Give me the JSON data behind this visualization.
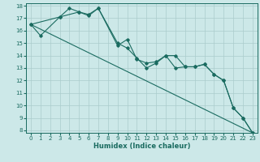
{
  "title": "",
  "xlabel": "Humidex (Indice chaleur)",
  "ylabel": "",
  "bg_color": "#cce8e8",
  "grid_color": "#aacccc",
  "line_color": "#1a6b60",
  "spine_color": "#1a6b60",
  "xlim": [
    -0.5,
    23.5
  ],
  "ylim": [
    7.8,
    18.2
  ],
  "xticks": [
    0,
    1,
    2,
    3,
    4,
    5,
    6,
    7,
    8,
    9,
    10,
    11,
    12,
    13,
    14,
    15,
    16,
    17,
    18,
    19,
    20,
    21,
    22,
    23
  ],
  "yticks": [
    8,
    9,
    10,
    11,
    12,
    13,
    14,
    15,
    16,
    17,
    18
  ],
  "series1_x": [
    0,
    1,
    3,
    4,
    5,
    6,
    7,
    9,
    10,
    11,
    12,
    13,
    14,
    15,
    16,
    17,
    18,
    19,
    20,
    21,
    22,
    23
  ],
  "series1_y": [
    16.5,
    15.6,
    17.1,
    17.8,
    17.5,
    17.3,
    17.8,
    15.0,
    14.6,
    13.8,
    13.0,
    13.4,
    14.0,
    13.0,
    13.1,
    13.1,
    13.3,
    12.5,
    12.0,
    9.8,
    9.0,
    7.8
  ],
  "series2_x": [
    0,
    3,
    5,
    6,
    7,
    9,
    10,
    11,
    12,
    13,
    14,
    15,
    16,
    17,
    18,
    19,
    20,
    21,
    22,
    23
  ],
  "series2_y": [
    16.5,
    17.1,
    17.5,
    17.2,
    17.8,
    14.8,
    15.3,
    13.7,
    13.4,
    13.5,
    14.0,
    14.0,
    13.1,
    13.1,
    13.3,
    12.5,
    12.0,
    9.8,
    9.0,
    7.8
  ],
  "series3_x": [
    0,
    23
  ],
  "series3_y": [
    16.5,
    7.8
  ],
  "tick_fontsize": 5.0,
  "xlabel_fontsize": 6.0,
  "marker": "D",
  "markersize": 1.8,
  "linewidth": 0.8
}
